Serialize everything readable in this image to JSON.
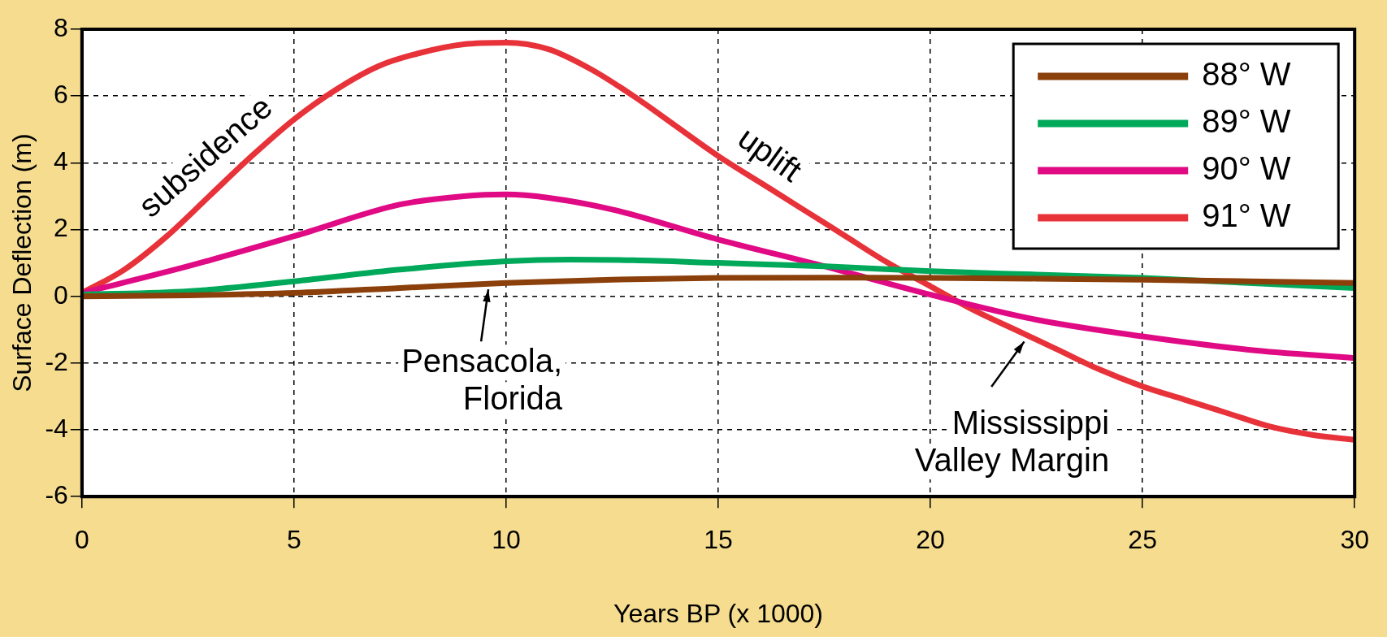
{
  "chart_data": {
    "type": "line",
    "xlabel": "Years BP (x 1000)",
    "ylabel": "Surface Deflection (m)",
    "xlim": [
      0,
      30
    ],
    "xticks": [
      0,
      5,
      10,
      15,
      20,
      25,
      30
    ],
    "ylim": [
      -6,
      8
    ],
    "yticks": [
      -6,
      -4,
      -2,
      0,
      2,
      4,
      6,
      8
    ],
    "grid": true,
    "legend": "top right",
    "marker": "none",
    "line_style": "solid",
    "series": [
      {
        "name": "88° W",
        "color": "#8b3f0a",
        "x": [
          0,
          2.5,
          5,
          7.5,
          10,
          12.5,
          15,
          17.5,
          20,
          22.5,
          25,
          27.5,
          30
        ],
        "values": [
          0,
          0.03,
          0.1,
          0.25,
          0.4,
          0.5,
          0.55,
          0.56,
          0.55,
          0.53,
          0.5,
          0.45,
          0.4
        ]
      },
      {
        "name": "89° W",
        "color": "#00a85a",
        "x": [
          0,
          2.5,
          5,
          7.5,
          10,
          11.5,
          13,
          15,
          17.5,
          20,
          22.5,
          25,
          27.5,
          30
        ],
        "values": [
          0.05,
          0.15,
          0.45,
          0.8,
          1.05,
          1.1,
          1.08,
          1.0,
          0.9,
          0.75,
          0.65,
          0.55,
          0.4,
          0.25
        ]
      },
      {
        "name": "90° W",
        "color": "#df0a84",
        "x": [
          0,
          2.5,
          5,
          7.5,
          9,
          10,
          11,
          12.5,
          15,
          17.5,
          20,
          22.5,
          25,
          27.5,
          30
        ],
        "values": [
          0.1,
          0.9,
          1.8,
          2.75,
          3.0,
          3.05,
          2.95,
          2.6,
          1.7,
          0.9,
          0.05,
          -0.7,
          -1.2,
          -1.6,
          -1.85
        ]
      },
      {
        "name": "91° W",
        "color": "#e8323a",
        "x": [
          0,
          1,
          2,
          3,
          4,
          5,
          6,
          7,
          8,
          9,
          10,
          11,
          12,
          13,
          14,
          15,
          16,
          17,
          18,
          19,
          20,
          21,
          22,
          23,
          24,
          25,
          26,
          27,
          28,
          29,
          30
        ],
        "values": [
          0.1,
          0.8,
          1.8,
          3.0,
          4.2,
          5.3,
          6.2,
          6.9,
          7.3,
          7.55,
          7.6,
          7.4,
          6.8,
          6.0,
          5.1,
          4.2,
          3.4,
          2.6,
          1.8,
          1.0,
          0.3,
          -0.4,
          -1.0,
          -1.6,
          -2.2,
          -2.7,
          -3.1,
          -3.5,
          -3.9,
          -4.15,
          -4.3
        ]
      }
    ],
    "annotations": [
      {
        "text": "subsidence",
        "x": 3.5,
        "y": 3.6
      },
      {
        "text": "uplift",
        "x": 15.8,
        "y": 3.6
      },
      {
        "text": "Pensacola,\nFlorida",
        "x": 9.6,
        "y": 0.4
      },
      {
        "text": "Mississippi\nValley Margin",
        "x": 22.3,
        "y": -1.2
      }
    ]
  }
}
